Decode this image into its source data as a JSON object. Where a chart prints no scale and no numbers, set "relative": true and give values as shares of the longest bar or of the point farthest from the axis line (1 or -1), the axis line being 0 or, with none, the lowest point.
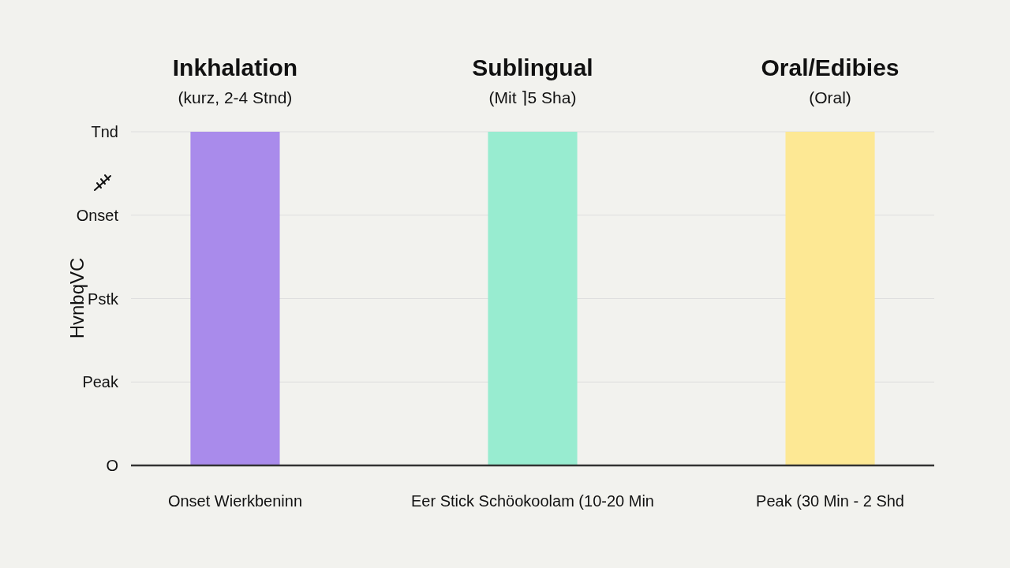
{
  "chart_data": {
    "type": "bar",
    "relative": true,
    "ylabel": "HvnbqVC",
    "categories": [
      "Onset Wierkbeninn",
      "Eer Stick Schöokoolam (10-20 Min",
      "Peak (30 Min - 2 Shd"
    ],
    "values": [
      1,
      1,
      1
    ],
    "colors": [
      "#a98beb",
      "#98ecd0",
      "#fde894"
    ],
    "grid": "y",
    "annotations": [
      "Inkhalation",
      "(kurz,  2-4 Stnd)",
      "Sublingual",
      "(Mit ⌉5 Sha)",
      "Oral/Edibies",
      "(Oral)",
      "Tnd",
      "Onset",
      "Pstk",
      "Peak",
      "O"
    ]
  }
}
